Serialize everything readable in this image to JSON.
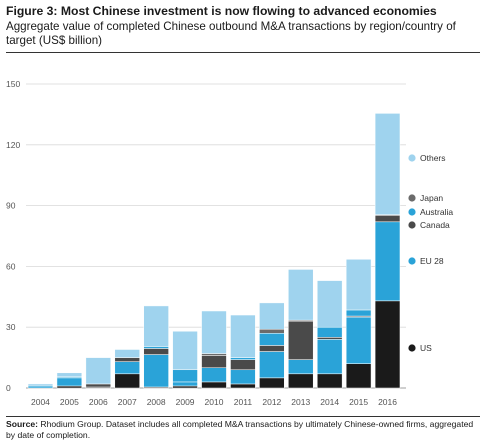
{
  "header": {
    "title": "Figure 3: Most Chinese investment is now flowing to advanced economies",
    "subtitle": "Aggregate value of completed Chinese outbound M&A transactions by region/country of target (US$ billion)"
  },
  "footer": {
    "source_label": "Source:",
    "source_text": "Rhodium Group. Dataset includes all completed M&A transactions by ultimately Chinese-owned firms, aggregated by date of completion."
  },
  "chart_data": {
    "type": "bar",
    "stacked": true,
    "categories": [
      "2004",
      "2005",
      "2006",
      "2007",
      "2008",
      "2009",
      "2010",
      "2011",
      "2012",
      "2013",
      "2014",
      "2015",
      "2016"
    ],
    "yticks": [
      0,
      30,
      60,
      90,
      120,
      150
    ],
    "ylim": [
      0,
      150
    ],
    "series": [
      {
        "name": "US",
        "color": "#1a1a1a",
        "values": [
          0,
          1,
          0.5,
          7,
          0.5,
          1,
          3,
          2,
          5,
          7,
          7,
          12,
          43
        ]
      },
      {
        "name": "EU 28",
        "color": "#2aa3d8",
        "values": [
          1,
          4,
          0,
          6,
          16,
          2,
          7,
          7,
          13,
          7,
          17,
          23,
          39
        ]
      },
      {
        "name": "Canada",
        "color": "#4a4a4a",
        "values": [
          0,
          0,
          1.5,
          2,
          3,
          0,
          6,
          5,
          3,
          19,
          1,
          0.5,
          3
        ]
      },
      {
        "name": "Australia",
        "color": "#2aa3d8",
        "values": [
          0,
          0.5,
          0,
          0,
          1,
          6,
          0,
          1,
          6,
          0,
          5,
          3,
          0
        ]
      },
      {
        "name": "Japan",
        "color": "#6b6b6b",
        "values": [
          0,
          0,
          0,
          0,
          0,
          0,
          1,
          0,
          2,
          0.5,
          0,
          0,
          0.5
        ]
      },
      {
        "name": "Others",
        "color": "#9fd3ee",
        "values": [
          1,
          2,
          13,
          4,
          20,
          19,
          21,
          21,
          13,
          25,
          23,
          25,
          50
        ]
      }
    ],
    "legend": [
      {
        "name": "Others",
        "color": "#9fd3ee"
      },
      {
        "name": "Japan",
        "color": "#6b6b6b"
      },
      {
        "name": "Australia",
        "color": "#2aa3d8"
      },
      {
        "name": "Canada",
        "color": "#4a4a4a"
      },
      {
        "name": "EU 28",
        "color": "#2aa3d8"
      },
      {
        "name": "US",
        "color": "#1a1a1a"
      }
    ],
    "grid": true
  }
}
